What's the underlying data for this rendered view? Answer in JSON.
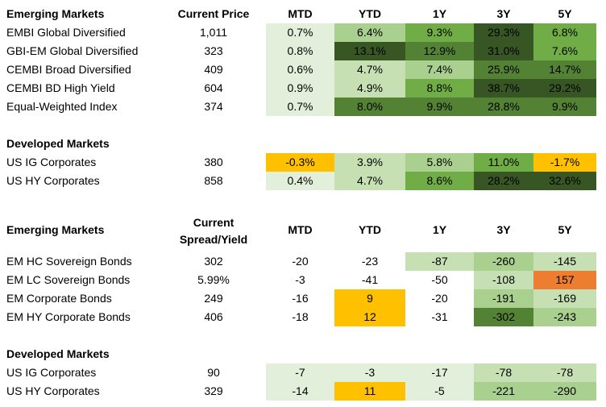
{
  "colors": {
    "very_light_green": "#e2efda",
    "light_green": "#c6e0b4",
    "mid_green": "#a9d08e",
    "green": "#70ad47",
    "dark_green": "#548235",
    "darkest_green": "#375623",
    "orange": "#ffc000",
    "dark_orange": "#ed7d31",
    "white": "#ffffff"
  },
  "table1": {
    "header": {
      "name": "Emerging Markets",
      "price": "Current Price",
      "cols": [
        "MTD",
        "YTD",
        "1Y",
        "3Y",
        "5Y"
      ]
    },
    "rows": [
      {
        "name": "EMBI Global Diversified",
        "price": "1,011",
        "values": [
          "0.7%",
          "6.4%",
          "9.3%",
          "29.3%",
          "6.8%"
        ],
        "colors": [
          "very_light_green",
          "mid_green",
          "green",
          "darkest_green",
          "green"
        ]
      },
      {
        "name": "GBI-EM Global Diversified",
        "price": "323",
        "values": [
          "0.8%",
          "13.1%",
          "12.9%",
          "31.0%",
          "7.6%"
        ],
        "colors": [
          "very_light_green",
          "darkest_green",
          "dark_green",
          "darkest_green",
          "green"
        ]
      },
      {
        "name": "CEMBI Broad Diversified",
        "price": "409",
        "values": [
          "0.6%",
          "4.7%",
          "7.4%",
          "25.9%",
          "14.7%"
        ],
        "colors": [
          "very_light_green",
          "light_green",
          "mid_green",
          "dark_green",
          "dark_green"
        ]
      },
      {
        "name": "CEMBI BD High Yield",
        "price": "604",
        "values": [
          "0.9%",
          "4.9%",
          "8.8%",
          "38.7%",
          "29.2%"
        ],
        "colors": [
          "very_light_green",
          "light_green",
          "green",
          "darkest_green",
          "darkest_green"
        ]
      },
      {
        "name": "Equal-Weighted Index",
        "price": "374",
        "values": [
          "0.7%",
          "8.0%",
          "9.9%",
          "28.8%",
          "9.9%"
        ],
        "colors": [
          "very_light_green",
          "dark_green",
          "dark_green",
          "dark_green",
          "dark_green"
        ]
      }
    ],
    "dev_header": "Developed Markets",
    "dev_rows": [
      {
        "name": "US IG Corporates",
        "price": "380",
        "values": [
          "-0.3%",
          "3.9%",
          "5.8%",
          "11.0%",
          "-1.7%"
        ],
        "colors": [
          "orange",
          "light_green",
          "mid_green",
          "green",
          "orange"
        ]
      },
      {
        "name": "US HY Corporates",
        "price": "858",
        "values": [
          "0.4%",
          "4.7%",
          "8.6%",
          "28.2%",
          "32.6%"
        ],
        "colors": [
          "very_light_green",
          "light_green",
          "green",
          "darkest_green",
          "darkest_green"
        ]
      }
    ]
  },
  "table2": {
    "header": {
      "name": "Emerging Markets",
      "price_line1": "Current",
      "price_line2": "Spread/Yield",
      "cols": [
        "MTD",
        "YTD",
        "1Y",
        "3Y",
        "5Y"
      ]
    },
    "rows": [
      {
        "name": "EM HC Sovereign Bonds",
        "price": "302",
        "values": [
          "-20",
          "-23",
          "-87",
          "-260",
          "-145"
        ],
        "colors": [
          "white",
          "white",
          "light_green",
          "mid_green",
          "light_green"
        ]
      },
      {
        "name": "EM LC Sovereign Bonds",
        "price": "5.99%",
        "values": [
          "-3",
          "-41",
          "-50",
          "-108",
          "157"
        ],
        "colors": [
          "white",
          "white",
          "white",
          "light_green",
          "dark_orange"
        ]
      },
      {
        "name": "EM Corporate Bonds",
        "price": "249",
        "values": [
          "-16",
          "9",
          "-20",
          "-191",
          "-169"
        ],
        "colors": [
          "white",
          "orange",
          "white",
          "mid_green",
          "light_green"
        ]
      },
      {
        "name": "EM HY Corporate Bonds",
        "price": "406",
        "values": [
          "-18",
          "12",
          "-31",
          "-302",
          "-243"
        ],
        "colors": [
          "white",
          "orange",
          "white",
          "dark_green",
          "mid_green"
        ]
      }
    ],
    "dev_header": "Developed Markets",
    "dev_rows": [
      {
        "name": "US IG Corporates",
        "price": "90",
        "values": [
          "-7",
          "-3",
          "-17",
          "-78",
          "-78"
        ],
        "colors": [
          "very_light_green",
          "very_light_green",
          "very_light_green",
          "light_green",
          "light_green"
        ]
      },
      {
        "name": "US HY Corporates",
        "price": "329",
        "values": [
          "-14",
          "11",
          "-5",
          "-221",
          "-290"
        ],
        "colors": [
          "very_light_green",
          "orange",
          "very_light_green",
          "mid_green",
          "mid_green"
        ]
      }
    ]
  }
}
